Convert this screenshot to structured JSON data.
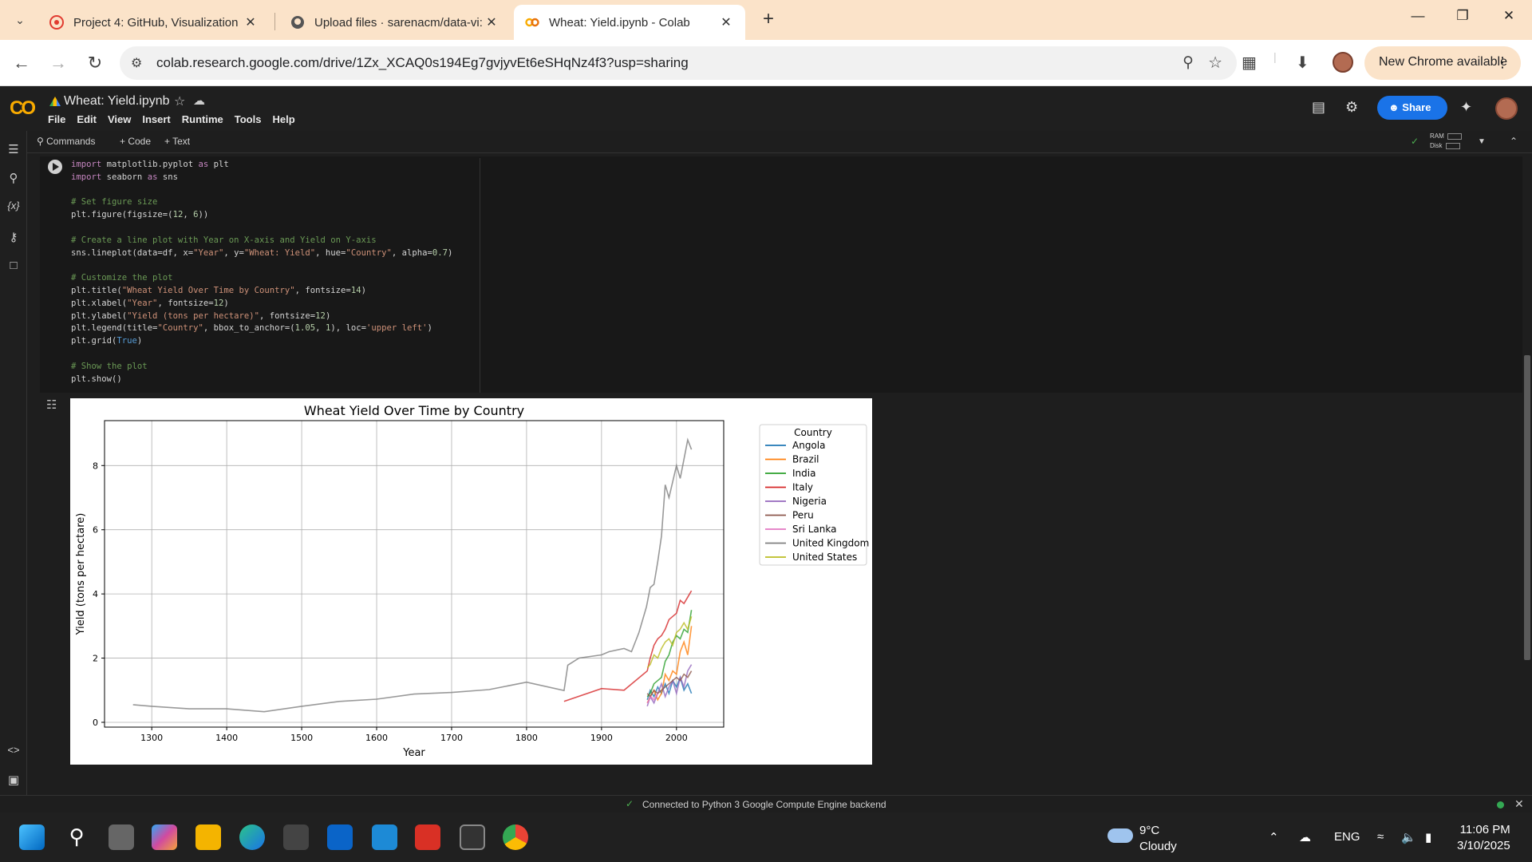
{
  "browser": {
    "tabs": [
      {
        "title": "Project 4: GitHub, Visualization",
        "icon": "canvas-icon",
        "active": false
      },
      {
        "title": "Upload files · sarenacm/data-vi:",
        "icon": "github-icon",
        "active": false
      },
      {
        "title": "Wheat: Yield.ipynb - Colab",
        "icon": "colab-icon",
        "active": true
      }
    ],
    "url": "colab.research.google.com/drive/1Zx_XCAQ0s194Eg7gvjyvEt6eSHqNz4f3?usp=sharing",
    "update_label": "New Chrome available"
  },
  "colab": {
    "notebook_title": "Wheat: Yield.ipynb",
    "menu": [
      "File",
      "Edit",
      "View",
      "Insert",
      "Runtime",
      "Tools",
      "Help"
    ],
    "share_label": "Share",
    "toolbar": {
      "commands": "Commands",
      "code": "+ Code",
      "text": "+ Text",
      "ram": "RAM",
      "disk": "Disk"
    },
    "status": "Connected to Python 3 Google Compute Engine backend"
  },
  "code_lines": [
    "import matplotlib.pyplot as plt",
    "import seaborn as sns",
    "",
    "# Set figure size",
    "plt.figure(figsize=(12, 6))",
    "",
    "# Create a line plot with Year on X-axis and Yield on Y-axis",
    "sns.lineplot(data=df, x=\"Year\", y=\"Wheat: Yield\", hue=\"Country\", alpha=0.7)",
    "",
    "# Customize the plot",
    "plt.title(\"Wheat Yield Over Time by Country\", fontsize=14)",
    "plt.xlabel(\"Year\", fontsize=12)",
    "plt.ylabel(\"Yield (tons per hectare)\", fontsize=12)",
    "plt.legend(title=\"Country\", bbox_to_anchor=(1.05, 1), loc='upper left')",
    "plt.grid(True)",
    "",
    "# Show the plot",
    "plt.show()"
  ],
  "chart_data": {
    "type": "line",
    "title": "Wheat Yield Over Time by Country",
    "xlabel": "Year",
    "ylabel": "Yield (tons per hectare)",
    "xlim": [
      1237,
      2063
    ],
    "ylim": [
      -0.15,
      9.4
    ],
    "xticks": [
      1300,
      1400,
      1500,
      1600,
      1700,
      1800,
      1900,
      2000
    ],
    "yticks": [
      0,
      2,
      4,
      6,
      8
    ],
    "grid": true,
    "legend_title": "Country",
    "legend_position": "outside-upper-right",
    "series": [
      {
        "name": "Angola",
        "color": "#1f77b4",
        "x": [
          1961,
          1965,
          1970,
          1975,
          1980,
          1985,
          1990,
          1995,
          2000,
          2005,
          2010,
          2015,
          2020
        ],
        "y": [
          0.7,
          1.0,
          0.8,
          1.1,
          0.9,
          1.2,
          0.9,
          1.3,
          1.1,
          1.4,
          1.0,
          1.2,
          0.9
        ]
      },
      {
        "name": "Brazil",
        "color": "#ff7f0e",
        "x": [
          1961,
          1965,
          1970,
          1975,
          1980,
          1985,
          1990,
          1995,
          2000,
          2005,
          2010,
          2015,
          2020
        ],
        "y": [
          0.6,
          0.8,
          1.0,
          0.7,
          0.9,
          1.5,
          1.3,
          1.6,
          1.5,
          2.2,
          2.5,
          2.1,
          3.0
        ]
      },
      {
        "name": "India",
        "color": "#2ca02c",
        "x": [
          1961,
          1965,
          1970,
          1975,
          1980,
          1985,
          1990,
          1995,
          2000,
          2005,
          2010,
          2015,
          2020
        ],
        "y": [
          0.8,
          0.9,
          1.2,
          1.3,
          1.4,
          1.9,
          2.1,
          2.5,
          2.7,
          2.6,
          2.9,
          2.8,
          3.5
        ]
      },
      {
        "name": "Italy",
        "color": "#d62728",
        "x": [
          1850,
          1900,
          1930,
          1961,
          1965,
          1970,
          1975,
          1980,
          1985,
          1990,
          1995,
          2000,
          2005,
          2010,
          2015,
          2020
        ],
        "y": [
          0.65,
          1.05,
          1.0,
          1.6,
          2.0,
          2.4,
          2.6,
          2.7,
          2.9,
          3.2,
          3.3,
          3.4,
          3.8,
          3.7,
          3.9,
          4.1
        ]
      },
      {
        "name": "Nigeria",
        "color": "#9467bd",
        "x": [
          1961,
          1965,
          1970,
          1975,
          1980,
          1985,
          1990,
          1995,
          2000,
          2005,
          2010,
          2015,
          2020
        ],
        "y": [
          0.5,
          0.8,
          0.6,
          0.9,
          1.2,
          0.8,
          1.1,
          1.3,
          0.9,
          1.4,
          1.1,
          1.6,
          1.8
        ]
      },
      {
        "name": "Peru",
        "color": "#8c564b",
        "x": [
          1961,
          1965,
          1970,
          1975,
          1980,
          1985,
          1990,
          1995,
          2000,
          2005,
          2010,
          2015,
          2020
        ],
        "y": [
          0.9,
          0.8,
          1.0,
          0.9,
          1.0,
          1.1,
          1.2,
          1.3,
          1.4,
          1.3,
          1.5,
          1.4,
          1.6
        ]
      },
      {
        "name": "Sri Lanka",
        "color": "#e377c2",
        "x": [
          1961,
          1966,
          1970,
          1975
        ],
        "y": [
          0.6,
          0.8,
          0.7,
          0.9
        ]
      },
      {
        "name": "United Kingdom",
        "color": "#7f7f7f",
        "x": [
          1275,
          1300,
          1350,
          1400,
          1450,
          1500,
          1550,
          1600,
          1650,
          1700,
          1750,
          1800,
          1850,
          1855,
          1870,
          1900,
          1910,
          1930,
          1940,
          1950,
          1960,
          1965,
          1970,
          1975,
          1980,
          1985,
          1990,
          1995,
          2000,
          2005,
          2010,
          2015,
          2020
        ],
        "y": [
          0.55,
          0.5,
          0.42,
          0.42,
          0.33,
          0.5,
          0.65,
          0.72,
          0.88,
          0.93,
          1.02,
          1.25,
          0.99,
          1.78,
          2.0,
          2.1,
          2.2,
          2.3,
          2.2,
          2.8,
          3.6,
          4.2,
          4.3,
          5.0,
          5.8,
          7.4,
          7.0,
          7.5,
          8.0,
          7.6,
          8.2,
          8.8,
          8.5
        ]
      },
      {
        "name": "United States",
        "color": "#bcbd22",
        "x": [
          1961,
          1965,
          1970,
          1975,
          1980,
          1985,
          1990,
          1995,
          2000,
          2005,
          2010,
          2015,
          2020
        ],
        "y": [
          1.7,
          1.8,
          2.1,
          2.0,
          2.3,
          2.5,
          2.6,
          2.4,
          2.8,
          2.9,
          3.1,
          2.9,
          3.3
        ]
      }
    ]
  },
  "system": {
    "temperature": "9°C",
    "weather": "Cloudy",
    "language": "ENG",
    "time": "11:06 PM",
    "date": "3/10/2025"
  }
}
